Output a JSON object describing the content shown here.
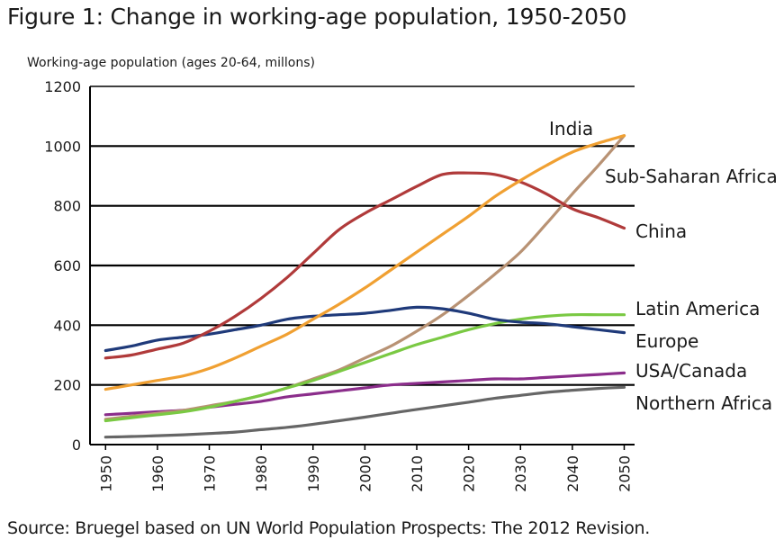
{
  "figure": {
    "title": "Figure 1: Change in working-age population, 1950-2050",
    "source": "Source: Bruegel based on UN World Population Prospects: The 2012 Revision."
  },
  "chart_data": {
    "type": "line",
    "title": "Figure 1: Change in working-age population, 1950-2050",
    "ylabel": "Working-age population (ages 20-64, millons)",
    "xlabel": "",
    "x_ticks": [
      1950,
      1960,
      1970,
      1980,
      1990,
      2000,
      2010,
      2020,
      2030,
      2040,
      2050
    ],
    "y_ticks": [
      0,
      200,
      400,
      600,
      800,
      1000,
      1200
    ],
    "xlim": [
      1947,
      2052
    ],
    "ylim": [
      0,
      1200
    ],
    "grid": "horizontal",
    "legend": "labels at line ends (right)",
    "series": [
      {
        "name": "India",
        "color": "#f0a032",
        "x": [
          1950,
          1955,
          1960,
          1965,
          1970,
          1975,
          1980,
          1985,
          1990,
          1995,
          2000,
          2005,
          2010,
          2015,
          2020,
          2025,
          2030,
          2035,
          2040,
          2045,
          2050
        ],
        "y": [
          185,
          200,
          215,
          230,
          255,
          290,
          330,
          370,
          420,
          470,
          525,
          585,
          645,
          705,
          765,
          830,
          885,
          935,
          980,
          1010,
          1035
        ]
      },
      {
        "name": "China",
        "color": "#b03a3a",
        "x": [
          1950,
          1955,
          1960,
          1965,
          1970,
          1975,
          1980,
          1985,
          1990,
          1995,
          2000,
          2005,
          2010,
          2015,
          2020,
          2025,
          2030,
          2035,
          2040,
          2045,
          2050
        ],
        "y": [
          290,
          300,
          320,
          340,
          380,
          430,
          490,
          560,
          640,
          720,
          775,
          820,
          865,
          905,
          910,
          905,
          880,
          840,
          790,
          760,
          725
        ]
      },
      {
        "name": "Sub-Saharan Africa",
        "color": "#b89274",
        "x": [
          1950,
          1955,
          1960,
          1965,
          1970,
          1975,
          1980,
          1985,
          1990,
          1995,
          2000,
          2005,
          2010,
          2015,
          2020,
          2025,
          2030,
          2035,
          2040,
          2045,
          2050
        ],
        "y": [
          85,
          95,
          105,
          115,
          130,
          145,
          165,
          190,
          220,
          250,
          290,
          330,
          380,
          435,
          500,
          570,
          645,
          740,
          840,
          935,
          1035
        ]
      },
      {
        "name": "Latin America",
        "color": "#7ac943",
        "x": [
          1950,
          1955,
          1960,
          1965,
          1970,
          1975,
          1980,
          1985,
          1990,
          1995,
          2000,
          2005,
          2010,
          2015,
          2020,
          2025,
          2030,
          2035,
          2040,
          2045,
          2050
        ],
        "y": [
          80,
          90,
          100,
          110,
          125,
          145,
          165,
          190,
          215,
          245,
          275,
          305,
          335,
          360,
          385,
          405,
          420,
          430,
          435,
          435,
          435
        ]
      },
      {
        "name": "Europe",
        "color": "#1f3a7a",
        "x": [
          1950,
          1955,
          1960,
          1965,
          1970,
          1975,
          1980,
          1985,
          1990,
          1995,
          2000,
          2005,
          2010,
          2015,
          2020,
          2025,
          2030,
          2035,
          2040,
          2045,
          2050
        ],
        "y": [
          315,
          330,
          350,
          360,
          370,
          385,
          400,
          420,
          430,
          435,
          440,
          450,
          460,
          455,
          440,
          420,
          410,
          405,
          395,
          385,
          375
        ]
      },
      {
        "name": "USA/Canada",
        "color": "#8b2d8b",
        "x": [
          1950,
          1955,
          1960,
          1965,
          1970,
          1975,
          1980,
          1985,
          1990,
          1995,
          2000,
          2005,
          2010,
          2015,
          2020,
          2025,
          2030,
          2035,
          2040,
          2045,
          2050
        ],
        "y": [
          100,
          105,
          110,
          115,
          125,
          135,
          145,
          160,
          170,
          180,
          190,
          200,
          205,
          210,
          215,
          220,
          220,
          225,
          230,
          235,
          240
        ]
      },
      {
        "name": "Northern Africa",
        "color": "#666666",
        "x": [
          1950,
          1955,
          1960,
          1965,
          1970,
          1975,
          1980,
          1985,
          1990,
          1995,
          2000,
          2005,
          2010,
          2015,
          2020,
          2025,
          2030,
          2035,
          2040,
          2045,
          2050
        ],
        "y": [
          25,
          27,
          30,
          33,
          37,
          42,
          50,
          58,
          68,
          80,
          92,
          105,
          118,
          130,
          142,
          155,
          165,
          175,
          182,
          188,
          192
        ]
      }
    ]
  }
}
